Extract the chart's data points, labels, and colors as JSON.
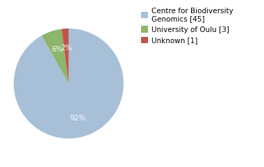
{
  "labels": [
    "Centre for Biodiversity\nGenomics [45]",
    "University of Oulu [3]",
    "Unknown [1]"
  ],
  "values": [
    45,
    3,
    1
  ],
  "colors": [
    "#a8bfd8",
    "#8db56b",
    "#c0544a"
  ],
  "legend_labels": [
    "Centre for Biodiversity\nGenomics [45]",
    "University of Oulu [3]",
    "Unknown [1]"
  ],
  "background_color": "#ffffff",
  "text_color": "#ffffff",
  "fontsize_pct": 7.5,
  "fontsize_legend": 7.5,
  "startangle": 90,
  "pctdistance": 0.65
}
